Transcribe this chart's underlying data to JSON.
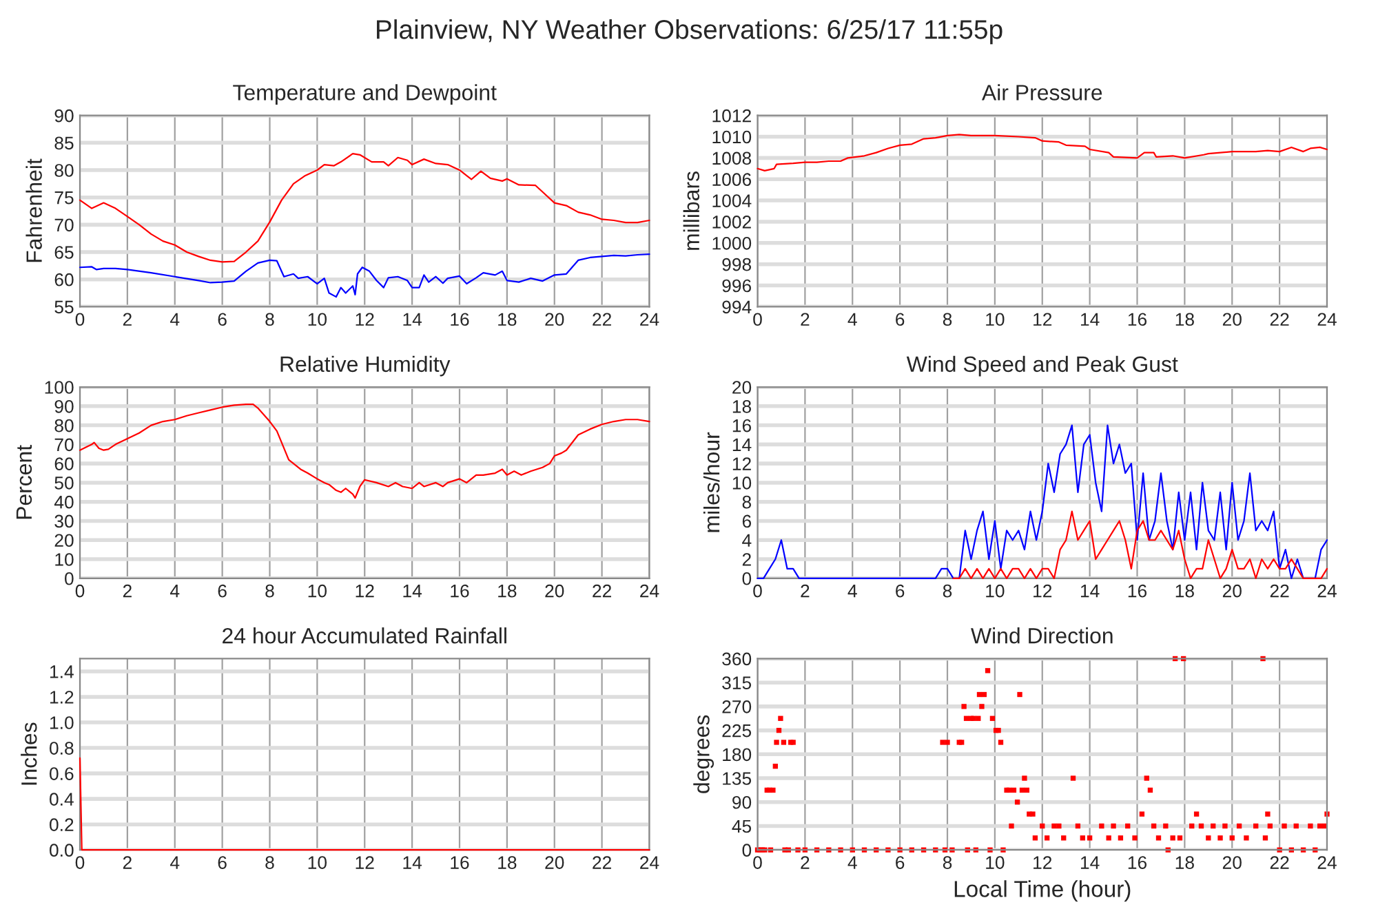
{
  "chart_data": [
    {
      "type": "line",
      "title": "Temperature and Dewpoint",
      "ylabel": "Fahrenheit",
      "annotations": [
        "Plainview, NY Weather Observations: 6/25/17 11:55p"
      ],
      "xlim": [
        0,
        24
      ],
      "xticks": [
        0,
        2,
        4,
        6,
        8,
        10,
        12,
        14,
        16,
        18,
        20,
        22,
        24
      ],
      "ylim": [
        55,
        90
      ],
      "yticks": [
        55,
        60,
        65,
        70,
        75,
        80,
        85,
        90
      ],
      "grid": true,
      "line_style": "solid",
      "marker": "none",
      "series": [
        {
          "color": "#ff0000",
          "x": [
            0,
            0.5,
            1,
            1.5,
            2,
            2.5,
            3,
            3.5,
            4,
            4.5,
            5,
            5.5,
            6,
            6.5,
            7,
            7.5,
            8,
            8.5,
            9,
            9.5,
            10,
            10.3,
            10.7,
            11,
            11.5,
            11.8,
            12.3,
            12.8,
            13,
            13.4,
            13.8,
            14,
            14.5,
            15,
            15.5,
            16,
            16.5,
            16.9,
            17.3,
            17.8,
            18,
            18.5,
            19.2,
            19.5,
            20,
            20.5,
            21,
            21.5,
            22,
            22.5,
            23,
            23.5,
            24
          ],
          "values": [
            74.5,
            73,
            74,
            73,
            71.5,
            70,
            68.3,
            67,
            66.3,
            65,
            64.2,
            63.5,
            63.2,
            63.3,
            65,
            67,
            70.5,
            74.5,
            77.5,
            79,
            80,
            81,
            80.8,
            81.5,
            83,
            82.8,
            81.5,
            81.5,
            80.8,
            82.3,
            81.8,
            81,
            82,
            81.2,
            81,
            80,
            78.3,
            79.8,
            78.5,
            78,
            78.4,
            77.3,
            77.2,
            76,
            74,
            73.5,
            72.3,
            71.8,
            71,
            70.8,
            70.4,
            70.4,
            70.8
          ]
        },
        {
          "color": "#0000ff",
          "x": [
            0,
            0.5,
            0.7,
            1,
            1.5,
            2,
            3,
            4,
            5,
            5.5,
            6,
            6.5,
            7,
            7.5,
            8,
            8.3,
            8.6,
            9,
            9.2,
            9.6,
            10,
            10.3,
            10.5,
            10.8,
            11,
            11.2,
            11.5,
            11.6,
            11.7,
            11.9,
            12.2,
            12.5,
            12.8,
            13,
            13.4,
            13.8,
            14,
            14.3,
            14.5,
            14.7,
            15,
            15.3,
            15.5,
            16,
            16.3,
            16.7,
            17,
            17.5,
            17.8,
            18,
            18.5,
            19,
            19.5,
            20,
            20.5,
            21,
            21.5,
            22,
            22.5,
            23,
            23.5,
            24
          ],
          "values": [
            62.2,
            62.3,
            61.8,
            62,
            62,
            61.8,
            61.2,
            60.5,
            59.8,
            59.4,
            59.5,
            59.7,
            61.5,
            63,
            63.5,
            63.4,
            60.5,
            61,
            60.2,
            60.5,
            59.2,
            60.2,
            57.5,
            56.8,
            58.5,
            57.5,
            58.8,
            57.2,
            61,
            62.2,
            61.5,
            59.8,
            58.5,
            60.3,
            60.5,
            59.8,
            58.5,
            58.5,
            60.8,
            59.5,
            60.5,
            59.3,
            60.2,
            60.6,
            59.2,
            60.3,
            61.2,
            60.8,
            61.5,
            59.8,
            59.5,
            60.2,
            59.7,
            60.8,
            61,
            63.5,
            64,
            64.2,
            64.4,
            64.3,
            64.5,
            64.6
          ]
        }
      ]
    },
    {
      "type": "line",
      "title": "Air Pressure",
      "ylabel": "millibars",
      "xlim": [
        0,
        24
      ],
      "xticks": [
        0,
        2,
        4,
        6,
        8,
        10,
        12,
        14,
        16,
        18,
        20,
        22,
        24
      ],
      "ylim": [
        994,
        1012
      ],
      "yticks": [
        994,
        996,
        998,
        1000,
        1002,
        1004,
        1006,
        1008,
        1010,
        1012
      ],
      "grid": true,
      "line_style": "solid",
      "marker": "none",
      "series": [
        {
          "color": "#ff0000",
          "x": [
            0,
            0.3,
            0.7,
            0.8,
            1.5,
            2,
            2.5,
            3,
            3.5,
            3.8,
            4.5,
            5,
            5.5,
            6,
            6.5,
            7,
            7.5,
            8,
            8.5,
            9,
            10,
            11,
            11.7,
            12,
            12.7,
            13,
            13.8,
            14,
            14.8,
            15,
            16,
            16.3,
            16.7,
            16.8,
            17.5,
            18,
            18.8,
            19,
            20,
            21,
            21.5,
            22,
            22.5,
            23,
            23.3,
            23.7,
            24
          ],
          "values": [
            1007,
            1006.8,
            1007,
            1007.4,
            1007.5,
            1007.6,
            1007.6,
            1007.7,
            1007.7,
            1008,
            1008.2,
            1008.5,
            1008.9,
            1009.2,
            1009.3,
            1009.8,
            1009.9,
            1010.1,
            1010.2,
            1010.1,
            1010.1,
            1010,
            1009.9,
            1009.6,
            1009.5,
            1009.2,
            1009.1,
            1008.8,
            1008.5,
            1008.1,
            1008,
            1008.5,
            1008.5,
            1008.1,
            1008.2,
            1008,
            1008.3,
            1008.4,
            1008.6,
            1008.6,
            1008.7,
            1008.6,
            1009,
            1008.6,
            1008.9,
            1009,
            1008.8
          ]
        }
      ]
    },
    {
      "type": "line",
      "title": "Relative Humidity",
      "ylabel": "Percent",
      "xlim": [
        0,
        24
      ],
      "xticks": [
        0,
        2,
        4,
        6,
        8,
        10,
        12,
        14,
        16,
        18,
        20,
        22,
        24
      ],
      "ylim": [
        0,
        100
      ],
      "yticks": [
        0,
        10,
        20,
        30,
        40,
        50,
        60,
        70,
        80,
        90,
        100
      ],
      "grid": true,
      "line_style": "solid",
      "marker": "none",
      "series": [
        {
          "color": "#ff0000",
          "x": [
            0,
            0.5,
            0.6,
            0.8,
            1,
            1.2,
            1.5,
            2,
            2.5,
            3,
            3.5,
            4,
            4.5,
            5,
            5.5,
            6,
            6.5,
            7,
            7.3,
            7.5,
            8,
            8.3,
            8.6,
            8.8,
            9,
            9.3,
            9.6,
            10,
            10.3,
            10.5,
            10.8,
            11,
            11.2,
            11.5,
            11.6,
            11.8,
            12,
            12.5,
            13,
            13.3,
            13.6,
            14,
            14.3,
            14.5,
            15,
            15.3,
            15.5,
            16,
            16.3,
            16.7,
            17,
            17.5,
            17.8,
            18,
            18.3,
            18.6,
            19,
            19.5,
            19.8,
            20,
            20.3,
            20.5,
            21,
            21.5,
            22,
            22.5,
            23,
            23.5,
            24
          ],
          "values": [
            67,
            70,
            71,
            68,
            67,
            67.5,
            70,
            73,
            76,
            80,
            82,
            83,
            85,
            86.5,
            88,
            89.5,
            90.5,
            91,
            91,
            89,
            82,
            77,
            68,
            62,
            60,
            57,
            55,
            52,
            50,
            49,
            46,
            45,
            47,
            44,
            42,
            48,
            51.5,
            50,
            48,
            50,
            48,
            47,
            50,
            48,
            50,
            48,
            50,
            52,
            50,
            54,
            54,
            55,
            57,
            54,
            56,
            54,
            56,
            58,
            60,
            64,
            65.5,
            67,
            75,
            78,
            80.5,
            82,
            83,
            83,
            82
          ]
        }
      ]
    },
    {
      "type": "line",
      "title": "Wind Speed and Peak Gust",
      "ylabel": "miles/hour",
      "xlim": [
        0,
        24
      ],
      "xticks": [
        0,
        2,
        4,
        6,
        8,
        10,
        12,
        14,
        16,
        18,
        20,
        22,
        24
      ],
      "ylim": [
        0,
        20
      ],
      "yticks": [
        0,
        2,
        4,
        6,
        8,
        10,
        12,
        14,
        16,
        18,
        20
      ],
      "grid": true,
      "line_style": "solid",
      "marker": "none",
      "x": [
        0,
        0.25,
        0.5,
        0.75,
        1,
        1.25,
        1.5,
        1.75,
        2,
        2.25,
        2.5,
        2.75,
        3,
        3.25,
        3.5,
        3.75,
        4,
        4.25,
        4.5,
        4.75,
        5,
        5.25,
        5.5,
        5.75,
        6,
        6.25,
        6.5,
        6.75,
        7,
        7.25,
        7.5,
        7.75,
        8,
        8.25,
        8.5,
        8.75,
        9,
        9.25,
        9.5,
        9.75,
        10,
        10.25,
        10.5,
        10.75,
        11,
        11.25,
        11.5,
        11.75,
        12,
        12.25,
        12.5,
        12.75,
        13,
        13.25,
        13.5,
        13.75,
        14,
        14.25,
        14.5,
        14.75,
        15,
        15.25,
        15.5,
        15.75,
        16,
        16.25,
        16.5,
        16.75,
        17,
        17.25,
        17.5,
        17.75,
        18,
        18.25,
        18.5,
        18.75,
        19,
        19.25,
        19.5,
        19.75,
        20,
        20.25,
        20.5,
        20.75,
        21,
        21.25,
        21.5,
        21.75,
        22,
        22.25,
        22.5,
        22.75,
        23,
        23.25,
        23.5,
        23.75,
        24
      ],
      "series": [
        {
          "color": "#0000ff",
          "values": [
            0,
            0,
            1,
            2,
            4,
            1,
            1,
            0,
            0,
            0,
            0,
            0,
            0,
            0,
            0,
            0,
            0,
            0,
            0,
            0,
            0,
            0,
            0,
            0,
            0,
            0,
            0,
            0,
            0,
            0,
            0,
            1,
            1,
            0,
            0,
            5,
            2,
            5,
            7,
            2,
            6,
            1,
            5,
            4,
            5,
            3,
            7,
            4,
            7,
            12,
            9,
            13,
            14,
            16,
            9,
            14,
            15,
            10,
            7,
            16,
            12,
            14,
            11,
            12,
            4,
            11,
            4,
            6,
            11,
            6,
            3,
            9,
            4,
            9,
            3,
            10,
            5,
            4,
            9,
            3,
            10,
            4,
            6,
            11,
            5,
            6,
            5,
            7,
            1,
            3,
            0,
            2,
            0,
            0,
            0,
            3,
            4
          ]
        },
        {
          "color": "#ff0000",
          "values": [
            null,
            null,
            null,
            null,
            null,
            null,
            null,
            null,
            null,
            null,
            null,
            null,
            null,
            null,
            null,
            null,
            null,
            null,
            null,
            null,
            null,
            null,
            null,
            null,
            null,
            null,
            null,
            null,
            null,
            null,
            null,
            null,
            null,
            0,
            0,
            1,
            0,
            1,
            0,
            1,
            0,
            1,
            0,
            1,
            1,
            0,
            1,
            0,
            1,
            1,
            0,
            3,
            4,
            7,
            4,
            5,
            6,
            2,
            3,
            4,
            5,
            6,
            4,
            1,
            5,
            6,
            4,
            4,
            5,
            4,
            3,
            5,
            2,
            0,
            1,
            1,
            4,
            2,
            0,
            1,
            3,
            1,
            1,
            2,
            0,
            2,
            1,
            2,
            1,
            1,
            2,
            1,
            0,
            0,
            0,
            0,
            1
          ]
        }
      ]
    },
    {
      "type": "line",
      "title": "24 hour Accumulated Rainfall",
      "ylabel": "Inches",
      "xlim": [
        0,
        24
      ],
      "xticks": [
        0,
        2,
        4,
        6,
        8,
        10,
        12,
        14,
        16,
        18,
        20,
        22,
        24
      ],
      "ylim": [
        0,
        1.5
      ],
      "yticks": [
        {
          "value": 0,
          "label": "0.0"
        },
        0.2,
        0.4,
        0.6,
        0.8,
        {
          "value": 1,
          "label": "1.0"
        },
        1.2,
        1.4
      ],
      "grid": true,
      "line_style": "solid",
      "marker": "none",
      "series": [
        {
          "color": "#ff0000",
          "x": [
            0,
            0.08,
            24
          ],
          "values": [
            0.72,
            0,
            0
          ]
        }
      ]
    },
    {
      "type": "scatter",
      "title": "Wind Direction",
      "ylabel": "degrees",
      "xlabel": "Local Time (hour)",
      "xlim": [
        0,
        24
      ],
      "xticks": [
        0,
        2,
        4,
        6,
        8,
        10,
        12,
        14,
        16,
        18,
        20,
        22,
        24
      ],
      "ylim": [
        0,
        360
      ],
      "yticks": [
        0,
        45,
        90,
        135,
        180,
        225,
        270,
        315,
        360
      ],
      "grid": true,
      "marker": "square",
      "series": [
        {
          "color": "#ff0000",
          "x": [
            0,
            0.1,
            0.2,
            0.3,
            0.4,
            0.5,
            0.55,
            0.65,
            0.75,
            0.8,
            0.9,
            0.97,
            1.1,
            1.15,
            1.3,
            1.4,
            1.5,
            1.7,
            2,
            2.5,
            3,
            3.5,
            4,
            4.5,
            5,
            5.5,
            6,
            6.5,
            7,
            7.5,
            7.8,
            7.9,
            8,
            8.2,
            8.5,
            8.6,
            8.7,
            8.8,
            8.85,
            9,
            9.1,
            9.2,
            9.3,
            9.35,
            9.45,
            9.55,
            9.7,
            9.8,
            9.9,
            10.05,
            10.15,
            10.25,
            10.35,
            10.5,
            10.6,
            10.7,
            10.8,
            10.95,
            11.05,
            11.15,
            11.25,
            11.35,
            11.45,
            11.6,
            11.7,
            12,
            12.2,
            12.5,
            12.7,
            12.9,
            13.3,
            13.5,
            13.7,
            14,
            14.5,
            14.8,
            15,
            15.3,
            15.6,
            15.9,
            16.2,
            16.4,
            16.55,
            16.7,
            16.9,
            17.2,
            17.3,
            17.5,
            17.6,
            17.8,
            17.95,
            18.3,
            18.5,
            18.7,
            19,
            19.2,
            19.5,
            19.7,
            20,
            20.3,
            20.6,
            21,
            21.3,
            21.4,
            21.5,
            21.6,
            22,
            22.2,
            22.5,
            22.7,
            23,
            23.3,
            23.5,
            23.7,
            23.9,
            24
          ],
          "values": [
            0,
            0,
            0,
            0,
            112.5,
            112.5,
            0,
            112.5,
            157.5,
            202.5,
            225,
            247.5,
            202.5,
            0,
            0,
            202.5,
            202.5,
            0,
            0,
            0,
            0,
            0,
            0,
            0,
            0,
            0,
            0,
            0,
            0,
            0,
            202.5,
            0,
            202.5,
            0,
            202.5,
            202.5,
            270,
            247.5,
            0,
            247.5,
            247.5,
            0,
            247.5,
            292.5,
            270,
            292.5,
            337.5,
            0,
            247.5,
            225,
            225,
            202.5,
            0,
            112.5,
            112.5,
            45,
            112.5,
            90,
            292.5,
            112.5,
            135,
            112.5,
            67.5,
            67.5,
            22.5,
            45,
            22.5,
            45,
            45,
            22.5,
            135,
            45,
            22.5,
            22.5,
            45,
            22.5,
            45,
            22.5,
            45,
            22.5,
            67.5,
            135,
            112.5,
            45,
            22.5,
            45,
            0,
            22.5,
            360,
            22.5,
            360,
            45,
            67.5,
            45,
            22.5,
            45,
            22.5,
            45,
            22.5,
            45,
            22.5,
            45,
            360,
            22.5,
            67.5,
            45,
            0,
            45,
            0,
            45,
            0,
            45,
            0,
            45,
            45,
            67.5
          ]
        }
      ]
    }
  ]
}
